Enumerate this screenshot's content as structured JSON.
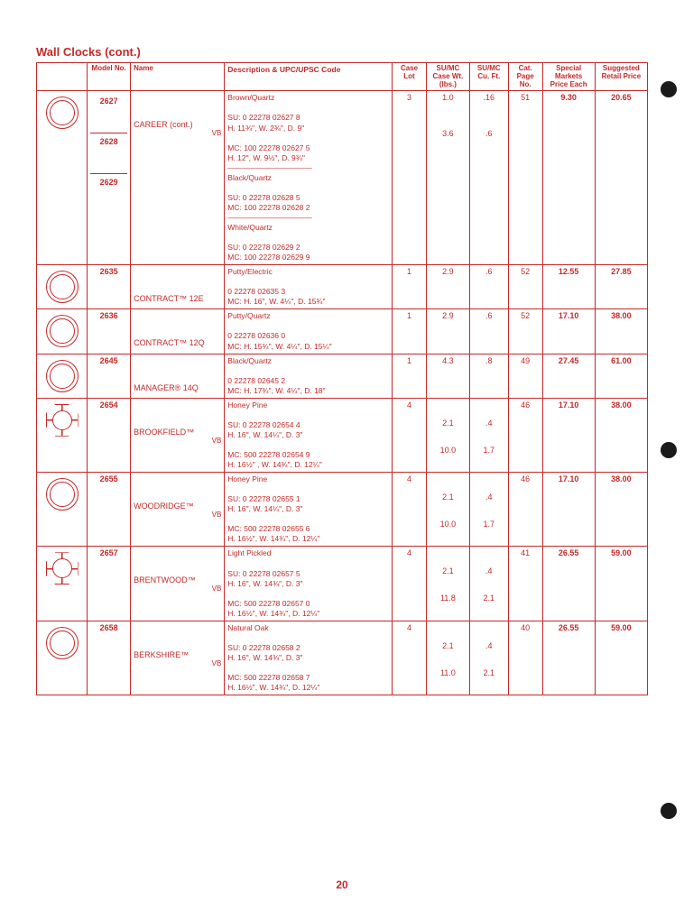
{
  "title": "Wall Clocks (cont.)",
  "pageNumber": "20",
  "headers": {
    "img": "",
    "model": "Model\nNo.",
    "name": "Name",
    "desc": "Description & UPC/UPSC Code",
    "caseLot": "Case\nLot",
    "caseWt": "SU/MC\nCase Wt.\n(lbs.)",
    "cuft": "SU/MC\nCu. Ft.",
    "catPage": "Cat.\nPage\nNo.",
    "special": "Special\nMarkets\nPrice Each",
    "retail": "Suggested\nRetail\nPrice"
  },
  "rows": [
    {
      "models": [
        "2627",
        "2628",
        "2629"
      ],
      "name": "CAREER (cont.)",
      "vb": "VB",
      "desc": "Brown/Quartz\n\nSU:  0 22278 02627 8\n        H. 11¾\", W. 2¾\", D. 9\"\n\nMC: 100 22278 02627 5\n        H. 12\", W. 9½\", D. 9¾\"\n———————————\nBlack/Quartz\n\nSU:  0 22278 02628 5\nMC: 100 22278 02628 2\n———————————\nWhite/Quartz\n\nSU:  0 22278 02629 2\nMC: 100 22278 02629 9",
      "caseLot": "3",
      "wt": "1.0\n\n\n\n3.6",
      "cuft": ".16\n\n\n\n.6",
      "page": "51",
      "special": "9.30",
      "retail": "20.65",
      "shape": "round"
    },
    {
      "models": [
        "2635"
      ],
      "name": "CONTRACT™ 12E",
      "desc": "Putty/Electric\n\n0 22278 02635 3\nMC:  H. 16\", W. 4¼\", D. 15¾\"",
      "caseLot": "1",
      "wt": "2.9",
      "cuft": ".6",
      "page": "52",
      "special": "12.55",
      "retail": "27.85",
      "shape": "round"
    },
    {
      "models": [
        "2636"
      ],
      "name": "CONTRACT™ 12Q",
      "desc": "Putty/Quartz\n\n0 22278 02636 0\nMC:  H. 15¾\", W. 4¼\", D. 15¼\"",
      "caseLot": "1",
      "wt": "2.9",
      "cuft": ".6",
      "page": "52",
      "special": "17.10",
      "retail": "38.00",
      "shape": "round"
    },
    {
      "models": [
        "2645"
      ],
      "name": "MANAGER® 14Q",
      "desc": "Black/Quartz\n\n0 22278 02645 2\nMC:  H. 17¾\", W. 4¼\", D. 18\"",
      "caseLot": "1",
      "wt": "4.3",
      "cuft": ".8",
      "page": "49",
      "special": "27.45",
      "retail": "61.00",
      "shape": "round"
    },
    {
      "models": [
        "2654"
      ],
      "name": "BROOKFIELD™",
      "vb": "VB",
      "desc": "Honey Pine\n\nSU:  0 22278 02654 4\n        H. 16\", W. 14¼\", D. 3\"\n\nMC: 500 22278 02654 9\n        H. 16½\" , W. 14¾\", D. 12¼\"",
      "caseLot": "4",
      "wt": "\n\n2.1\n\n\n10.0",
      "cuft": "\n\n.4\n\n\n1.7",
      "page": "46",
      "special": "17.10",
      "retail": "38.00",
      "shape": "oct"
    },
    {
      "models": [
        "2655"
      ],
      "name": "WOODRIDGE™",
      "vb": "VB",
      "desc": "Honey Pine\n\nSU:  0 22278 02655 1\n        H. 16\", W. 14¼\", D. 3\"\n\nMC: 500 22278 02655 6\n        H. 16½\", W. 14¾\", D. 12¼\"",
      "caseLot": "4",
      "wt": "\n\n2.1\n\n\n10.0",
      "cuft": "\n\n.4\n\n\n1.7",
      "page": "46",
      "special": "17.10",
      "retail": "38.00",
      "shape": "round"
    },
    {
      "models": [
        "2657"
      ],
      "name": "BRENTWOOD™",
      "vb": "VB",
      "desc": "Light Pickled\n\nSU:  0 22278 02657 5\n        H. 16\", W. 14¾\", D. 3\"\n\nMC: 500 22278 02657 0\n        H. 16½\", W. 14¾\", D. 12¼\"",
      "caseLot": "4",
      "wt": "\n\n2.1\n\n\n11.8",
      "cuft": "\n\n.4\n\n\n2.1",
      "page": "41",
      "special": "26.55",
      "retail": "59.00",
      "shape": "oct"
    },
    {
      "models": [
        "2658"
      ],
      "name": "BERKSHIRE™",
      "vb": "VB",
      "desc": "Natural Oak\n\nSU:  0 22278 02658 2\n        H. 16\", W. 14¾\", D. 3\"\n\nMC: 500 22278 02658 7\n        H. 16½\", W. 14¾\", D. 12¼\"",
      "caseLot": "4",
      "wt": "\n\n2.1\n\n\n11.0",
      "cuft": "\n\n.4\n\n\n2.1",
      "page": "40",
      "special": "26.55",
      "retail": "59.00",
      "shape": "round"
    }
  ]
}
